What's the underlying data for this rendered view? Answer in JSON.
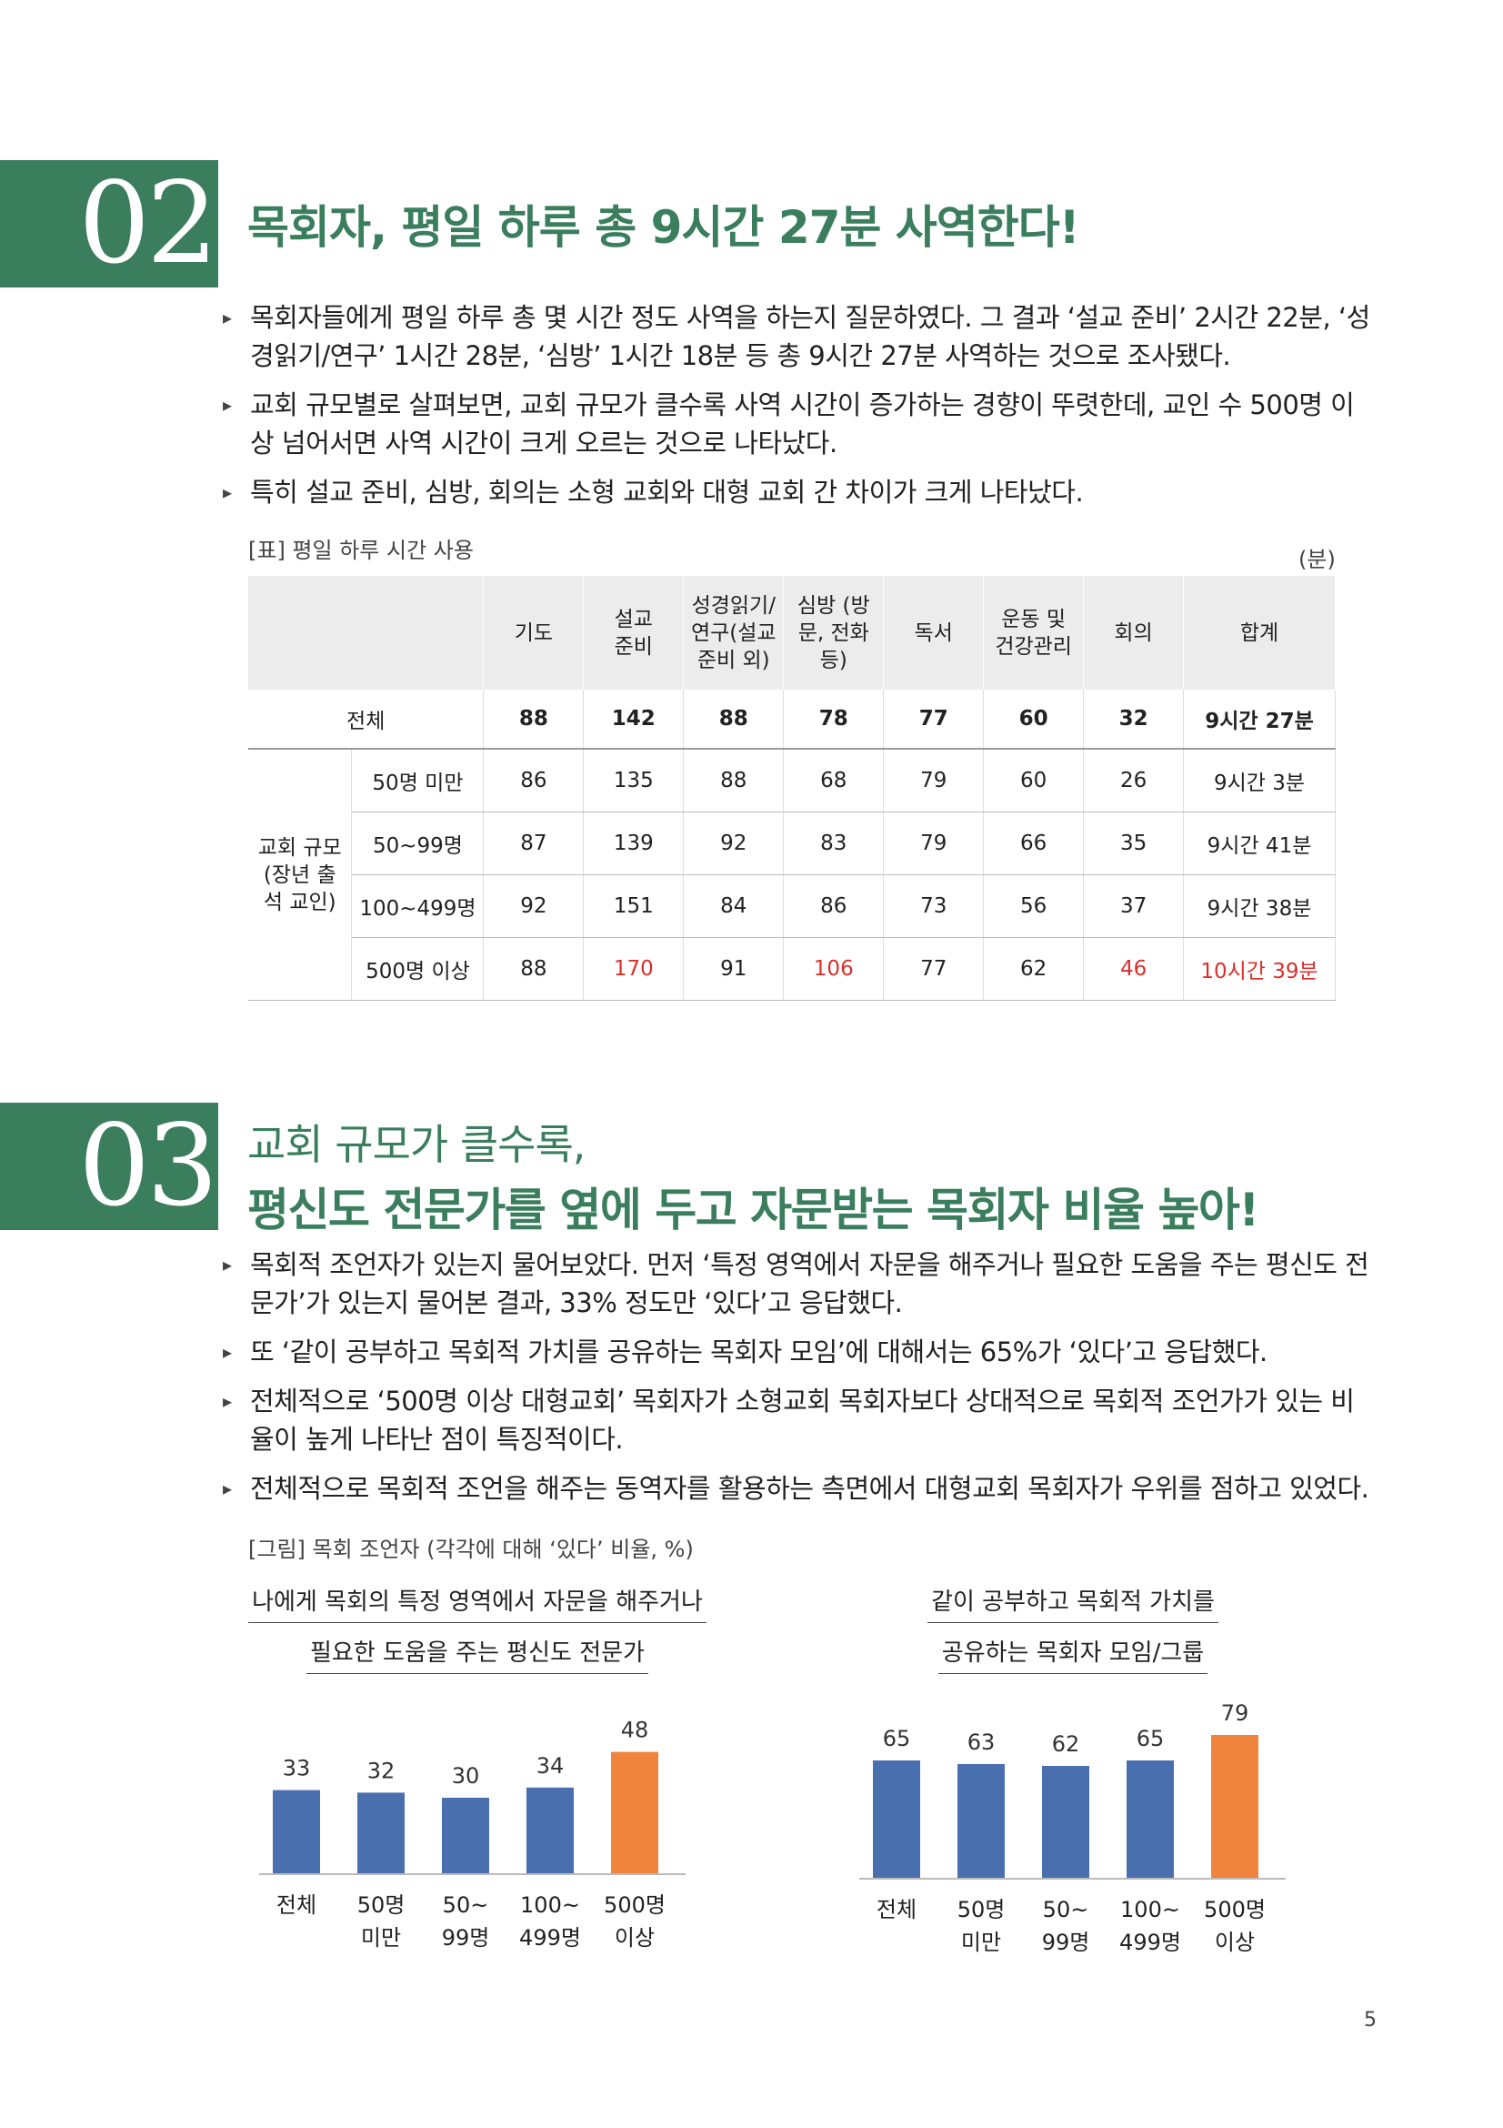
{
  "section02": {
    "number": "02",
    "title": "목회자, 평일 하루 총 9시간 27분 사역한다!",
    "bullets": [
      "목회자들에게 평일 하루 총 몇 시간 정도 사역을 하는지 질문하였다. 그 결과 ‘설교 준비’ 2시간 22분, ‘성경읽기/연구’ 1시간 28분, ‘심방’ 1시간 18분 등 총 9시간 27분 사역하는 것으로 조사됐다.",
      "교회 규모별로 살펴보면, 교회 규모가 클수록 사역 시간이 증가하는 경향이 뚜렷한데, 교인 수 500명 이상 넘어서면 사역 시간이 크게 오르는 것으로 나타났다.",
      "특히 설교 준비, 심방, 회의는 소형 교회와 대형 교회 간 차이가 크게 나타났다."
    ],
    "table_caption": "[표] 평일 하루 시간 사용",
    "unit": "(분)",
    "table": {
      "headers": [
        "기도",
        "설교 준비",
        "성경읽기/ 연구(설교 준비 외)",
        "심방 (방문, 전화 등)",
        "독서",
        "운동 및 건강관리",
        "회의",
        "합계"
      ],
      "total_label": "전체",
      "total": [
        "88",
        "142",
        "88",
        "78",
        "77",
        "60",
        "32",
        "9시간 27분"
      ],
      "group_label": "교회 규모 (장년 출석 교인)",
      "rows": [
        {
          "label": "50명 미만",
          "values": [
            "86",
            "135",
            "88",
            "68",
            "79",
            "60",
            "26",
            "9시간 3분"
          ]
        },
        {
          "label": "50~99명",
          "values": [
            "87",
            "139",
            "92",
            "83",
            "79",
            "66",
            "35",
            "9시간 41분"
          ]
        },
        {
          "label": "100~499명",
          "values": [
            "92",
            "151",
            "84",
            "86",
            "73",
            "56",
            "37",
            "9시간 38분"
          ]
        },
        {
          "label": "500명 이상",
          "values": [
            "88",
            "170",
            "91",
            "106",
            "77",
            "62",
            "46",
            "10시간 39분"
          ]
        }
      ]
    }
  },
  "section03": {
    "number": "03",
    "title_line1": "교회 규모가 클수록,",
    "title_line2": "평신도 전문가를 옆에 두고 자문받는 목회자 비율 높아!",
    "bullets": [
      "목회적 조언자가 있는지 물어보았다. 먼저 ‘특정 영역에서 자문을 해주거나 필요한 도움을 주는 평신도 전문가’가 있는지 물어본 결과, 33% 정도만 ‘있다’고 응답했다.",
      "또 ‘같이 공부하고 목회적 가치를 공유하는 목회자 모임’에 대해서는 65%가 ‘있다’고 응답했다.",
      "전체적으로 ‘500명 이상 대형교회’ 목회자가 소형교회 목회자보다 상대적으로 목회적 조언가가 있는 비율이 높게 나타난 점이 특징적이다.",
      "전체적으로 목회적 조언을 해주는 동역자를 활용하는 측면에서 대형교회 목회자가 우위를 점하고 있었다."
    ],
    "figure_caption": "[그림] 목회 조언자 (각각에 대해 ‘있다’ 비율, %)"
  },
  "chart_data": [
    {
      "type": "bar",
      "title": "나에게 목회의 특정 영역에서 자문을 해주거나 필요한 도움을 주는 평신도 전문가",
      "title_lines": [
        "나에게 목회의 특정 영역에서 자문을 해주거나",
        "필요한 도움을 주는 평신도 전문가"
      ],
      "categories": [
        "전체",
        "50명 미만",
        "50~ 99명",
        "100~ 499명",
        "500명 이상"
      ],
      "category_lines": [
        [
          "전체"
        ],
        [
          "50명",
          "미만"
        ],
        [
          "50~",
          "99명"
        ],
        [
          "100~",
          "499명"
        ],
        [
          "500명",
          "이상"
        ]
      ],
      "values": [
        33,
        32,
        30,
        34,
        48
      ],
      "colors": [
        "#4a6fae",
        "#4a6fae",
        "#4a6fae",
        "#4a6fae",
        "#f0843c"
      ],
      "ylim": [
        0,
        100
      ]
    },
    {
      "type": "bar",
      "title": "같이 공부하고 목회적 가치를 공유하는 목회자 모임/그룹",
      "title_lines": [
        "같이 공부하고 목회적 가치를",
        "공유하는 목회자 모임/그룹"
      ],
      "categories": [
        "전체",
        "50명 미만",
        "50~ 99명",
        "100~ 499명",
        "500명 이상"
      ],
      "category_lines": [
        [
          "전체"
        ],
        [
          "50명",
          "미만"
        ],
        [
          "50~",
          "99명"
        ],
        [
          "100~",
          "499명"
        ],
        [
          "500명",
          "이상"
        ]
      ],
      "values": [
        65,
        63,
        62,
        65,
        79
      ],
      "colors": [
        "#4a6fae",
        "#4a6fae",
        "#4a6fae",
        "#4a6fae",
        "#f0843c"
      ],
      "ylim": [
        0,
        100
      ]
    }
  ],
  "page_number": "5"
}
